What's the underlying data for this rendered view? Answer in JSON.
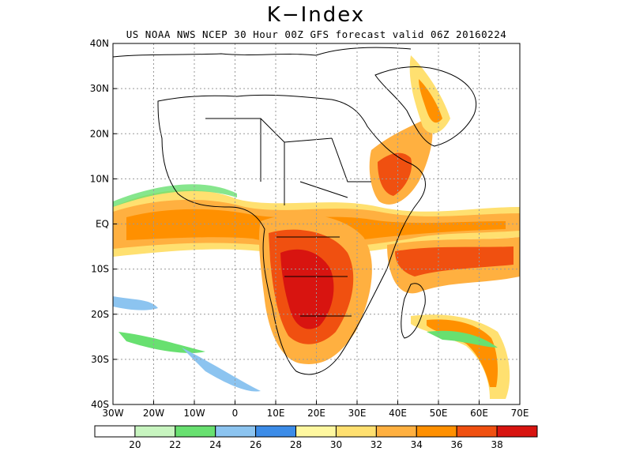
{
  "title": "K−Index",
  "subtitle": "US NOAA NWS NCEP 30 Hour 00Z GFS forecast valid 06Z 20160224",
  "colors": {
    "land_border": "#000000",
    "grid": "#999999",
    "bins": [
      "#ffffff",
      "#c8f5c0",
      "#68e070",
      "#8cc4f0",
      "#3c8ce8",
      "#fff8a0",
      "#ffe070",
      "#ffb040",
      "#ff9000",
      "#f05010",
      "#d81410"
    ]
  },
  "colorbar": {
    "labels": [
      "20",
      "22",
      "24",
      "26",
      "28",
      "30",
      "32",
      "34",
      "36",
      "38"
    ]
  },
  "axes": {
    "lon_labels": [
      "30W",
      "20W",
      "10W",
      "0",
      "10E",
      "20E",
      "30E",
      "40E",
      "50E",
      "60E",
      "70E"
    ],
    "lat_labels": [
      "40N",
      "30N",
      "20N",
      "10N",
      "EQ",
      "10S",
      "20S",
      "30S",
      "40S"
    ]
  },
  "chart_data": {
    "type": "heatmap",
    "title": "K−Index",
    "subtitle": "US NOAA NWS NCEP 30 Hour 00Z GFS forecast valid 06Z 20160224",
    "xlim": [
      -30,
      70
    ],
    "ylim": [
      -40,
      40
    ],
    "x_ticks": [
      "30W",
      "20W",
      "10W",
      "0",
      "10E",
      "20E",
      "30E",
      "40E",
      "50E",
      "60E",
      "70E"
    ],
    "y_ticks": [
      "40N",
      "30N",
      "20N",
      "10N",
      "EQ",
      "10S",
      "20S",
      "30S",
      "40S"
    ],
    "levels": [
      20,
      22,
      24,
      26,
      28,
      30,
      32,
      34,
      36,
      38
    ],
    "grid": true
  }
}
